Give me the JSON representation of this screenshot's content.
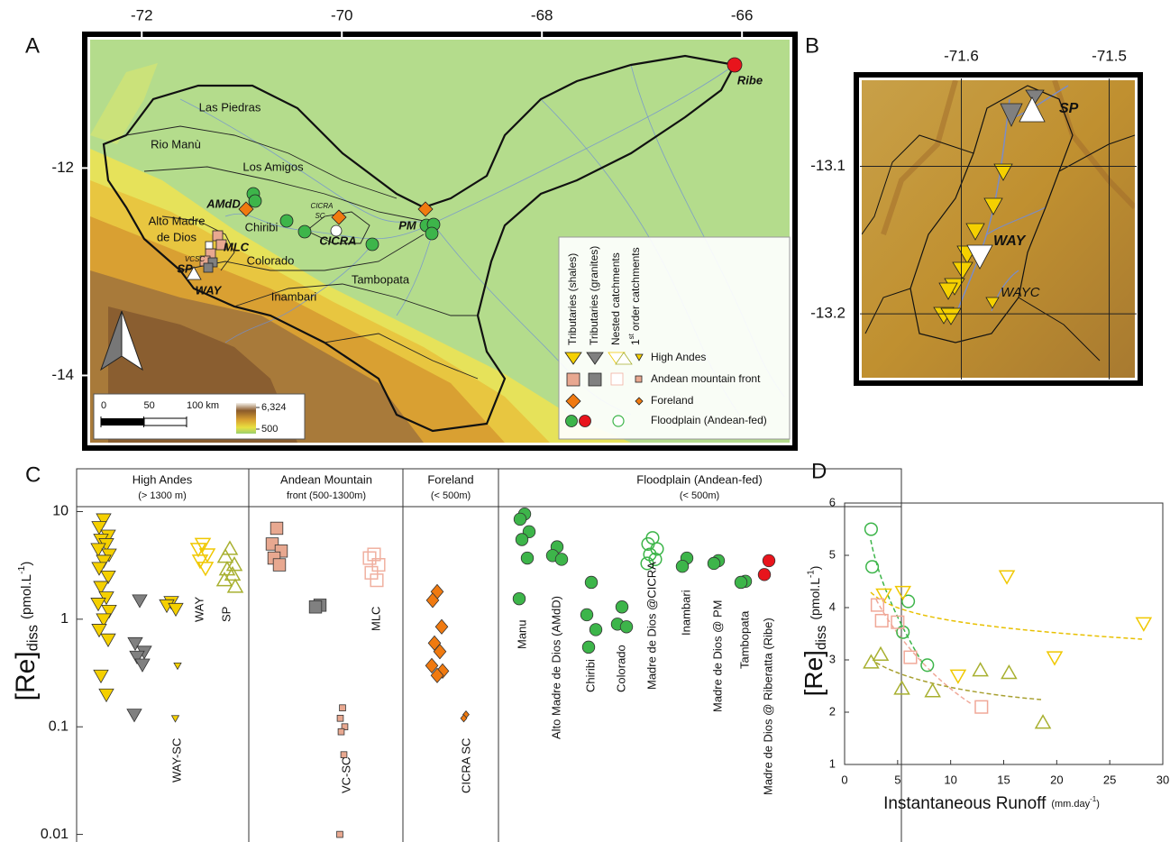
{
  "panel_labels": [
    "A",
    "B",
    "C",
    "D"
  ],
  "maps": [
    {
      "xlim": [
        -72.57,
        -65.47
      ],
      "ylim": [
        -14.7,
        -10.71
      ],
      "xticks": [
        -72,
        -70,
        -68,
        -66
      ],
      "yticks": [
        -12,
        -14
      ],
      "labels": [
        "Las Piedras",
        "Rio Manù",
        "Los Amigos",
        "AMdD",
        "Chiribi",
        "CICRA",
        "SC",
        "CICRA",
        "PM",
        "Alto Madre",
        "de Dios",
        "MLC",
        "Colorado",
        "VCSC",
        "SP",
        "WAY",
        "Inambari",
        "Tambopata",
        "Ribe"
      ],
      "legend": {
        "columns": [
          "Tributaries (shales)",
          "Tributaries (granites)",
          "Nested catchments",
          {
            "pre": "1",
            "sup": "st",
            "post": "order catchments"
          }
        ],
        "rows": [
          "High Andes",
          "Andean mountain front",
          "Foreland",
          "Floodplain (Andean-fed)"
        ]
      },
      "scale_bar": {
        "ticks": [
          0,
          50,
          {
            "value": 100,
            "label": "100 km"
          }
        ]
      },
      "elevation": {
        "ticks": [
          {
            "value": 6324,
            "label": "6,324"
          },
          500
        ]
      }
    },
    {
      "xlim": [
        -71.671,
        -71.479
      ],
      "ylim": [
        -13.247,
        -13.038
      ],
      "xticks": [
        -71.6,
        -71.5
      ],
      "yticks": [
        -13.1,
        -13.2
      ],
      "grid": true,
      "labels": [
        "SP",
        "WAY",
        "WAYC"
      ]
    }
  ],
  "chart_data": [
    {
      "type": "strip",
      "log_y": true,
      "ylim": [
        0.0085,
        25
      ],
      "yticks": [
        10,
        1,
        0.1,
        0.01
      ],
      "y_label": {
        "main": "[Re]",
        "sub": "diss",
        "unit": "(pmol.L",
        "sup": "-1",
        "close": ")"
      },
      "groups": [
        {
          "title": "High Andes",
          "subtitle": "(> 1300 m)"
        },
        {
          "title": "Andean Mountain",
          "subtitle": "front (500-1300m)"
        },
        {
          "title": "Foreland",
          "subtitle": "(< 500m)"
        },
        {
          "title": "Floodplain (Andean-fed)",
          "subtitle": "(< 500m)"
        }
      ],
      "series": [
        {
          "color": "#f5d000",
          "marker": "tri-down",
          "filled": true,
          "size": "large",
          "values": [
            8.5,
            7.2,
            6,
            5.5,
            5,
            4.5,
            4,
            3.5,
            3,
            2.5,
            2,
            1.6,
            1.4,
            1.2,
            1,
            0.8,
            0.65,
            0.3,
            0.2
          ]
        },
        {
          "color": "#808080",
          "marker": "tri-down",
          "filled": true,
          "size": "large",
          "values": [
            1.5,
            0.6,
            0.5,
            0.45,
            0.38,
            0.13
          ]
        },
        {
          "color": "#f5d000",
          "marker": "tri-down",
          "filled": true,
          "size": "large",
          "values": [
            1.45,
            1.35,
            1.25
          ]
        },
        {
          "name": "WAY-SC",
          "color": "#f5d000",
          "marker": "tri-down",
          "filled": true,
          "size": "small",
          "values": [
            0.37,
            0.12
          ]
        },
        {
          "name": "WAY",
          "color": "#f0c800",
          "marker": "tri-down",
          "filled": false,
          "size": "large",
          "values": [
            5,
            4.5,
            4,
            3.5,
            3
          ]
        },
        {
          "name": "SP",
          "color": "#a8b030",
          "marker": "tri-up",
          "filled": false,
          "size": "large",
          "values": [
            4.5,
            3.8,
            3.2,
            2.9,
            2.6,
            2.3,
            2
          ]
        },
        {
          "color": "#e8a890",
          "marker": "square",
          "filled": true,
          "size": "large",
          "values": [
            7,
            5,
            4.3,
            3.7,
            3.2
          ]
        },
        {
          "color": "#808080",
          "marker": "square",
          "filled": true,
          "size": "large",
          "values": [
            1.35,
            1.3
          ]
        },
        {
          "name": "VC-SC",
          "color": "#e8a890",
          "marker": "square",
          "filled": true,
          "size": "small",
          "values": [
            0.15,
            0.12,
            0.1,
            0.09,
            0.055,
            0.01
          ]
        },
        {
          "name": "MLC",
          "color": "#f0b0a0",
          "marker": "square",
          "filled": false,
          "size": "large",
          "values": [
            4,
            3.7,
            3.2,
            2.7,
            2.3
          ]
        },
        {
          "color": "#f07a10",
          "marker": "diamond",
          "filled": true,
          "size": "large",
          "values": [
            1.8,
            1.5,
            0.85,
            0.6,
            0.5,
            0.37,
            0.33,
            0.3
          ]
        },
        {
          "name": "CICRA SC",
          "color": "#f07a10",
          "marker": "diamond",
          "filled": true,
          "size": "small",
          "values": [
            0.13,
            0.12
          ]
        },
        {
          "name": "Manu",
          "color": "#3db54a",
          "marker": "circle",
          "filled": true,
          "size": "large",
          "values": [
            9.5,
            8.5,
            6.5,
            5.5,
            3.7,
            1.55
          ]
        },
        {
          "name": "Alto Madre de Dios (AMdD)",
          "color": "#3db54a",
          "marker": "circle",
          "filled": true,
          "size": "large",
          "values": [
            4.7,
            3.9,
            3.6
          ]
        },
        {
          "name": "Chiribi",
          "color": "#3db54a",
          "marker": "circle",
          "filled": true,
          "size": "large",
          "values": [
            2.2,
            1.1,
            0.8,
            0.55
          ]
        },
        {
          "name": "Colorado",
          "color": "#3db54a",
          "marker": "circle",
          "filled": true,
          "size": "large",
          "values": [
            1.3,
            0.9,
            0.85
          ]
        },
        {
          "name": "Madre de Dios @CICRA",
          "color": "#3db54a",
          "marker": "circle",
          "filled": false,
          "size": "large",
          "values": [
            5.7,
            5,
            4.5,
            4,
            3.6,
            3.3
          ]
        },
        {
          "name": "Inambari",
          "color": "#3db54a",
          "marker": "circle",
          "filled": true,
          "size": "large",
          "values": [
            3.7,
            3.1
          ]
        },
        {
          "name": "Madre de Dios @ PM",
          "color": "#3db54a",
          "marker": "circle",
          "filled": true,
          "size": "large",
          "values": [
            3.5,
            3.3
          ]
        },
        {
          "name": "Tambopata",
          "color": "#3db54a",
          "marker": "circle",
          "filled": true,
          "size": "large",
          "values": [
            2.25,
            2.2
          ]
        },
        {
          "name": "Madre de Dios @ Riberatta (Ribe)",
          "color": "#e8141c",
          "marker": "circle",
          "filled": true,
          "size": "large",
          "values": [
            3.5,
            2.6
          ]
        }
      ]
    },
    {
      "type": "scatter",
      "xlim": [
        0,
        30
      ],
      "ylim": [
        1,
        6
      ],
      "xticks": [
        0,
        5,
        10,
        15,
        20,
        25,
        30
      ],
      "yticks": [
        1,
        2,
        3,
        4,
        5,
        6
      ],
      "x_label": {
        "main": "Instantaneous Runoff",
        "unit": "(mm.day",
        "sup": "-1",
        "close": ")"
      },
      "y_label": {
        "main": "[Re]",
        "sub": "diss",
        "unit": "(pmol.L",
        "sup": "-1",
        "close": ")"
      },
      "series": [
        {
          "color": "#3db54a",
          "marker": "circle",
          "filled": false,
          "x": [
            2.5,
            2.6,
            6,
            5.5,
            7.8
          ],
          "values": [
            5.5,
            4.78,
            4.12,
            3.53,
            2.9
          ]
        },
        {
          "color": "#f0c800",
          "marker": "tri-down",
          "filled": false,
          "x": [
            3.7,
            5.5,
            15.3,
            28.2,
            10.7,
            19.8
          ],
          "values": [
            4.25,
            4.3,
            4.6,
            3.7,
            2.7,
            3.05
          ]
        },
        {
          "color": "#f0a898",
          "marker": "square",
          "filled": false,
          "x": [
            3.1,
            3.5,
            5,
            6.2,
            12.9
          ],
          "values": [
            4.05,
            3.75,
            3.72,
            3.05,
            2.1
          ]
        },
        {
          "color": "#a8b030",
          "marker": "tri-up",
          "filled": false,
          "x": [
            2.5,
            3.4,
            5.4,
            8.3,
            12.8,
            15.5,
            18.7
          ],
          "values": [
            2.95,
            3.1,
            2.45,
            2.4,
            2.8,
            2.75,
            1.8
          ]
        }
      ]
    }
  ]
}
